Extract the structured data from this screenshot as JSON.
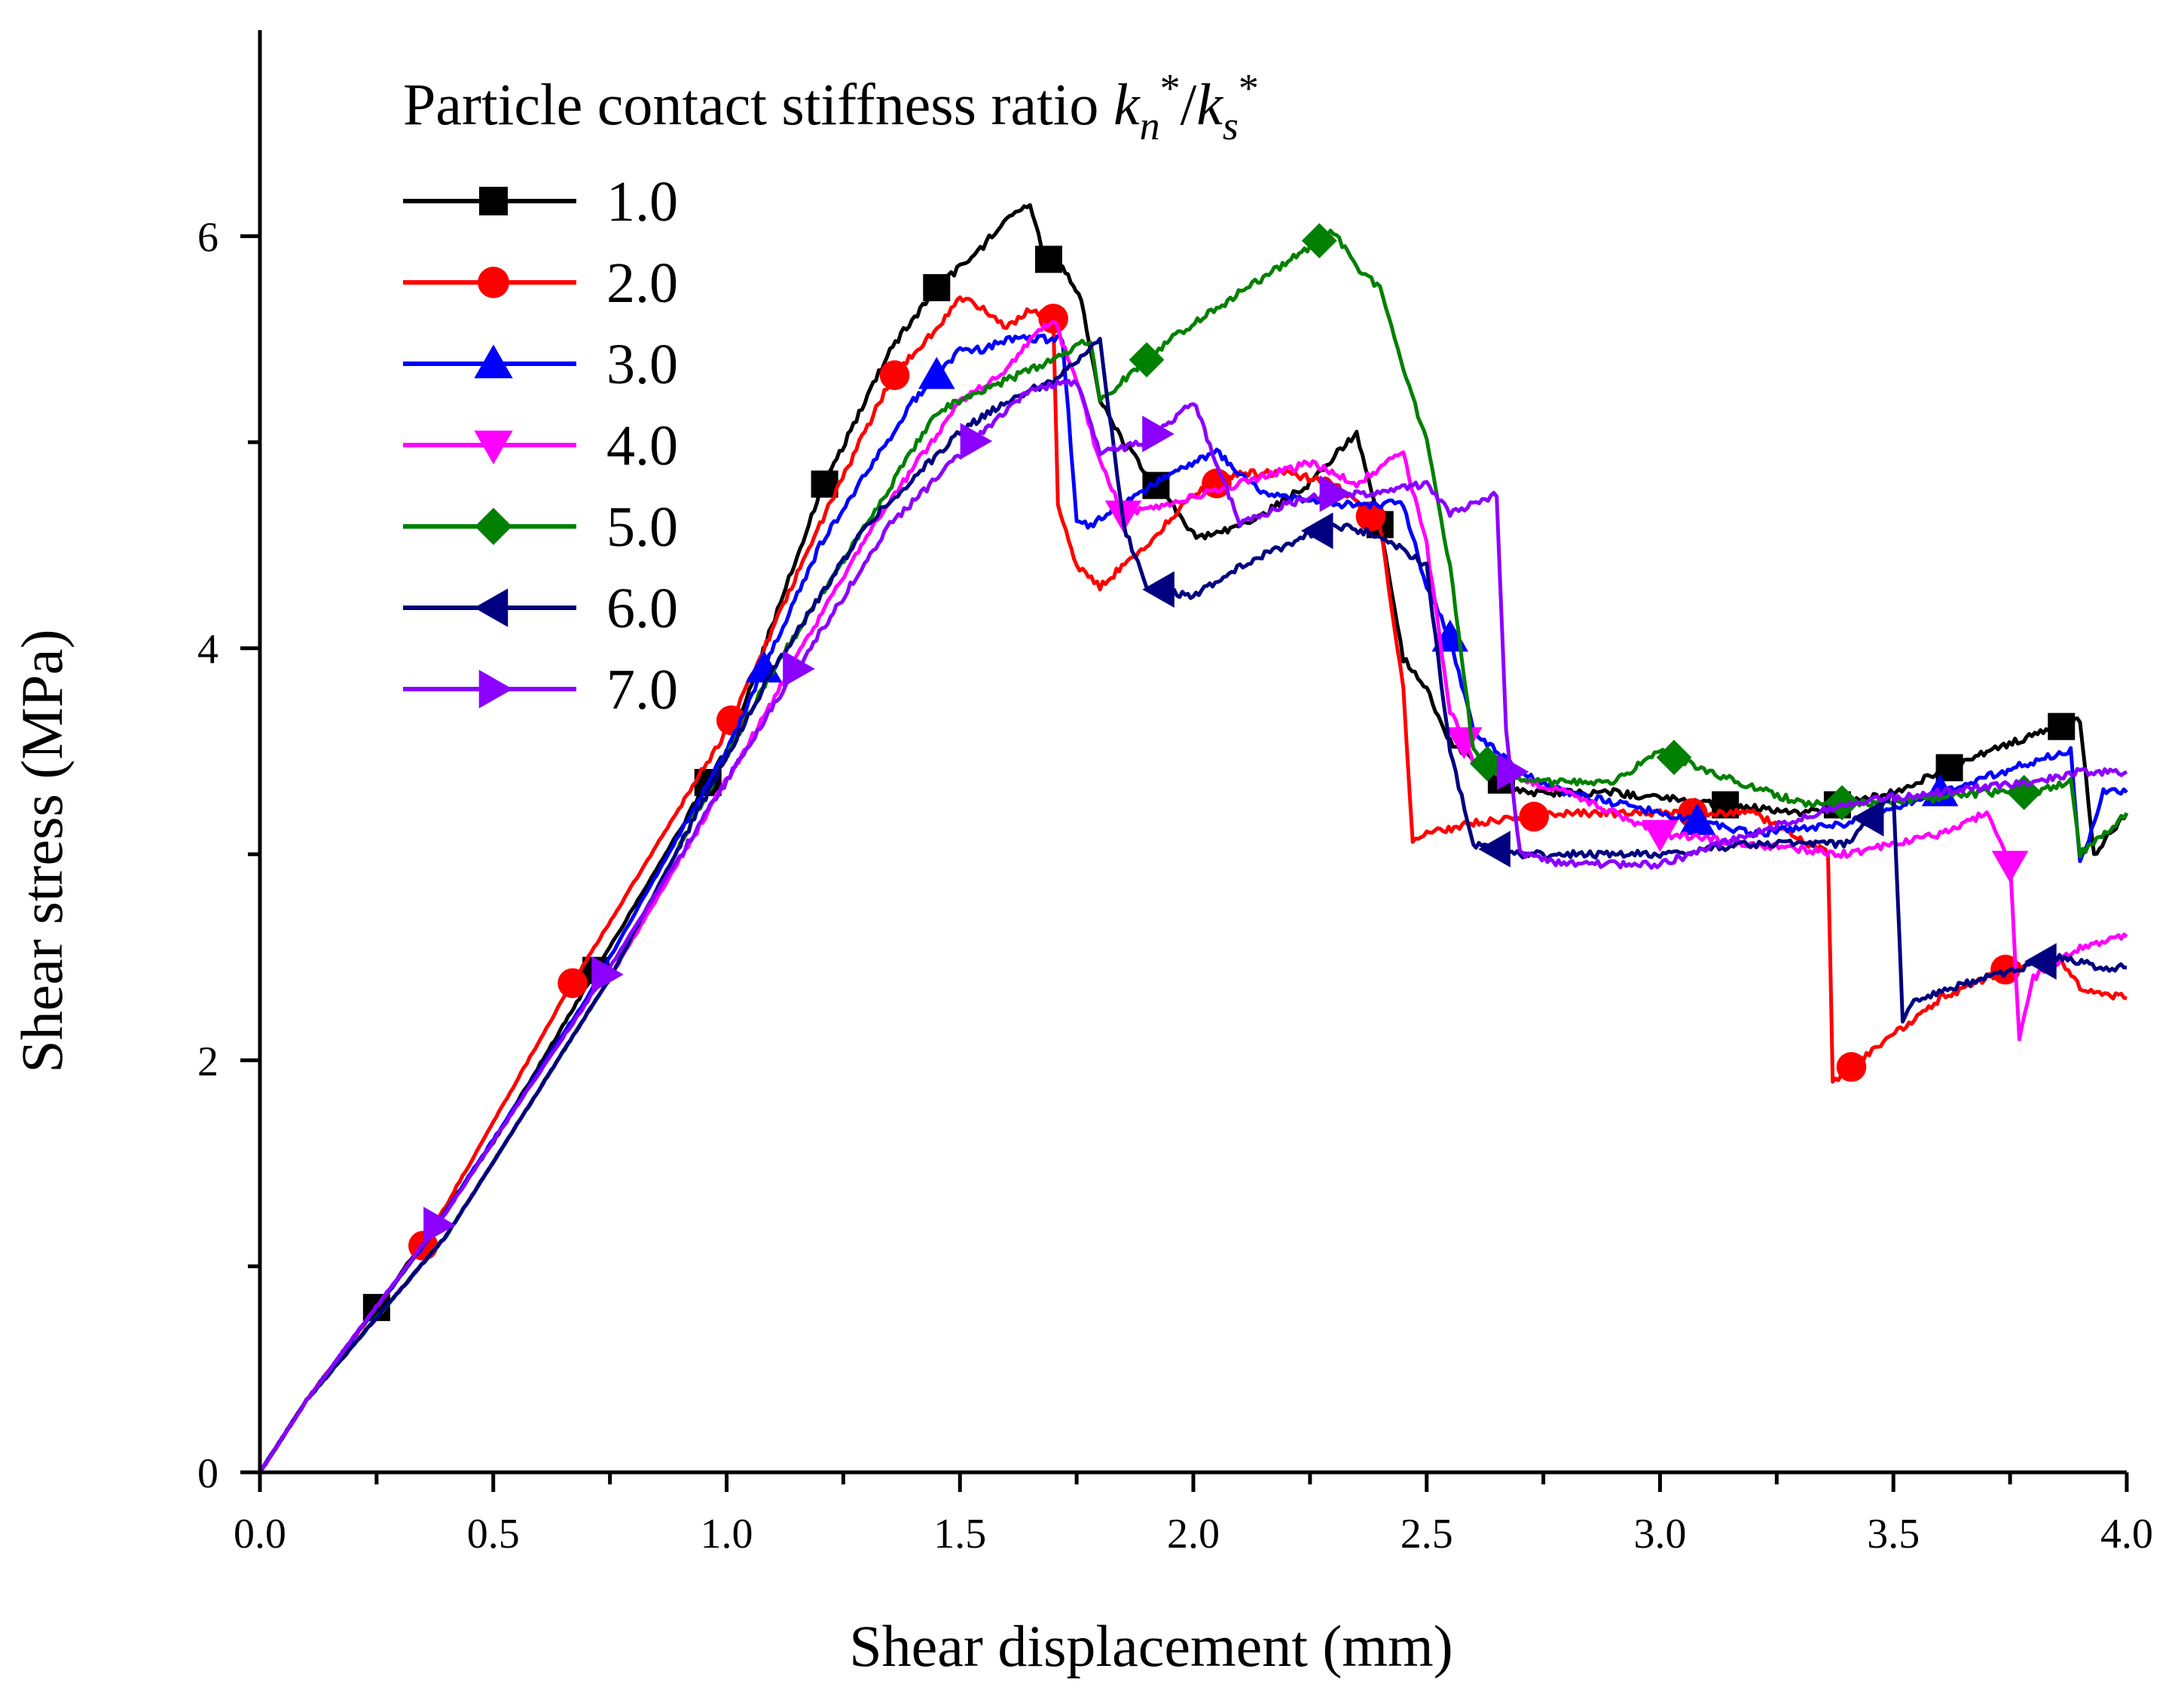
{
  "chart_data": {
    "type": "line",
    "title": "",
    "xlabel": "Shear displacement (mm)",
    "ylabel": "Shear stress (MPa)",
    "xlim": [
      0,
      4.0
    ],
    "ylim": [
      0,
      7.0
    ],
    "xticks": [
      0.0,
      0.5,
      1.0,
      1.5,
      2.0,
      2.5,
      3.0,
      3.5,
      4.0
    ],
    "xtick_labels": [
      "0.0",
      "0.5",
      "1.0",
      "1.5",
      "2.0",
      "2.5",
      "3.0",
      "3.5",
      "4.0"
    ],
    "yticks": [
      0,
      2,
      4,
      6
    ],
    "ytick_labels": [
      "0",
      "2",
      "4",
      "6"
    ],
    "grid": false,
    "legend": {
      "title_prefix": "Particle contact stiffness ratio ",
      "title_k": "k",
      "title_sub_n": "n",
      "title_sub_s": "s",
      "title_sup": "*",
      "title_slash": "/",
      "placement": "top-left"
    },
    "series": [
      {
        "name": "1.0",
        "color": "#000000",
        "marker": "square",
        "x": [
          0,
          0.1,
          0.25,
          0.5,
          0.75,
          1.0,
          1.2,
          1.35,
          1.45,
          1.5,
          1.55,
          1.6,
          1.65,
          1.68,
          1.72,
          1.76,
          1.8,
          1.85,
          1.9,
          2.0,
          2.05,
          2.15,
          2.25,
          2.35,
          2.4,
          2.45,
          2.5,
          2.55,
          2.6,
          2.7,
          2.9,
          3.1,
          3.3,
          3.5,
          3.7,
          3.9,
          3.93,
          4.0
        ],
        "y": [
          0,
          0.35,
          0.8,
          1.6,
          2.55,
          3.5,
          4.75,
          5.45,
          5.75,
          5.85,
          5.95,
          6.1,
          6.15,
          5.9,
          5.85,
          5.7,
          5.2,
          5.0,
          4.85,
          4.55,
          4.55,
          4.65,
          4.8,
          5.05,
          4.6,
          3.95,
          3.8,
          3.55,
          3.45,
          3.3,
          3.3,
          3.25,
          3.2,
          3.3,
          3.5,
          3.65,
          3.0,
          3.2
        ],
        "marker_x": [
          0.25,
          0.72,
          0.96,
          1.21,
          1.45,
          1.69,
          1.92,
          2.4,
          2.66,
          3.14,
          3.38,
          3.62,
          3.86
        ]
      },
      {
        "name": "2.0",
        "color": "#ff0000",
        "marker": "circle",
        "x": [
          0,
          0.1,
          0.35,
          0.65,
          1.0,
          1.2,
          1.35,
          1.45,
          1.5,
          1.55,
          1.6,
          1.65,
          1.7,
          1.71,
          1.75,
          1.8,
          1.9,
          2.0,
          2.1,
          2.2,
          2.3,
          2.4,
          2.45,
          2.47,
          2.5,
          2.6,
          2.8,
          3.0,
          3.2,
          3.36,
          3.37,
          3.4,
          3.6,
          3.75,
          3.85,
          3.9,
          4.0
        ],
        "y": [
          0,
          0.35,
          1.1,
          2.3,
          3.6,
          4.6,
          5.3,
          5.55,
          5.7,
          5.65,
          5.55,
          5.65,
          5.6,
          4.7,
          4.4,
          4.3,
          4.5,
          4.75,
          4.85,
          4.85,
          4.8,
          4.6,
          3.8,
          3.05,
          3.1,
          3.15,
          3.2,
          3.2,
          3.2,
          3.0,
          1.9,
          1.95,
          2.3,
          2.45,
          2.5,
          2.35,
          2.3
        ],
        "marker_x": [
          0.35,
          0.67,
          1.01,
          1.36,
          1.7,
          2.05,
          2.38,
          2.73,
          3.07,
          3.41,
          3.74
        ]
      },
      {
        "name": "3.0",
        "color": "#0000ff",
        "marker": "triangle-up",
        "x": [
          0,
          0.1,
          0.35,
          0.7,
          1.0,
          1.2,
          1.4,
          1.5,
          1.55,
          1.6,
          1.68,
          1.72,
          1.75,
          1.78,
          1.85,
          1.95,
          2.05,
          2.15,
          2.3,
          2.45,
          2.5,
          2.55,
          2.6,
          2.7,
          2.8,
          3.0,
          3.2,
          3.4,
          3.6,
          3.8,
          3.88,
          3.9,
          3.95,
          4.0
        ],
        "y": [
          0,
          0.35,
          1.1,
          2.3,
          3.5,
          4.5,
          5.2,
          5.45,
          5.45,
          5.5,
          5.5,
          5.5,
          4.6,
          4.6,
          4.7,
          4.85,
          4.95,
          4.75,
          4.7,
          4.7,
          4.3,
          4.05,
          3.6,
          3.4,
          3.3,
          3.2,
          3.1,
          3.15,
          3.3,
          3.45,
          3.5,
          2.95,
          3.3,
          3.3
        ],
        "marker_x": [
          1.08,
          1.45,
          2.55,
          3.08,
          3.6
        ]
      },
      {
        "name": "4.0",
        "color": "#ff00ff",
        "marker": "triangle-down",
        "x": [
          0,
          0.1,
          0.4,
          0.75,
          1.05,
          1.3,
          1.5,
          1.6,
          1.65,
          1.7,
          1.75,
          1.8,
          1.85,
          1.95,
          2.1,
          2.25,
          2.35,
          2.45,
          2.5,
          2.55,
          2.6,
          2.65,
          2.8,
          3.0,
          3.2,
          3.4,
          3.6,
          3.7,
          3.75,
          3.77,
          3.8,
          3.9,
          4.0
        ],
        "y": [
          0,
          0.35,
          1.15,
          2.4,
          3.55,
          4.55,
          5.2,
          5.35,
          5.5,
          5.6,
          5.3,
          4.9,
          4.65,
          4.7,
          4.8,
          4.9,
          4.8,
          4.95,
          4.5,
          3.7,
          3.45,
          3.4,
          3.3,
          3.1,
          3.05,
          3.0,
          3.1,
          3.2,
          2.95,
          2.1,
          2.4,
          2.55,
          2.6
        ],
        "marker_x": [
          1.85,
          2.58,
          3.0,
          3.75
        ]
      },
      {
        "name": "5.0",
        "color": "#008000",
        "marker": "diamond",
        "x": [
          0,
          0.1,
          0.4,
          0.75,
          1.1,
          1.3,
          1.45,
          1.6,
          1.7,
          1.78,
          1.8,
          1.85,
          1.95,
          2.05,
          2.15,
          2.25,
          2.3,
          2.35,
          2.4,
          2.45,
          2.5,
          2.55,
          2.6,
          2.65,
          2.75,
          2.9,
          3.0,
          3.1,
          3.3,
          3.5,
          3.7,
          3.8,
          3.88,
          3.9,
          4.0
        ],
        "y": [
          0,
          0.35,
          1.15,
          2.4,
          3.9,
          4.6,
          5.15,
          5.3,
          5.4,
          5.5,
          5.2,
          5.3,
          5.5,
          5.65,
          5.8,
          5.95,
          6.02,
          5.85,
          5.75,
          5.35,
          5.0,
          4.4,
          3.5,
          3.4,
          3.35,
          3.35,
          3.5,
          3.4,
          3.25,
          3.25,
          3.3,
          3.3,
          3.35,
          3.0,
          3.2
        ],
        "marker_x": [
          1.9,
          2.27,
          2.63,
          3.03,
          3.39,
          3.78
        ]
      },
      {
        "name": "6.0",
        "color": "#000080",
        "marker": "triangle-left",
        "x": [
          0,
          0.1,
          0.4,
          0.75,
          1.1,
          1.3,
          1.5,
          1.6,
          1.7,
          1.8,
          1.85,
          1.9,
          2.0,
          2.1,
          2.2,
          2.3,
          2.4,
          2.5,
          2.55,
          2.6,
          2.7,
          3.0,
          3.2,
          3.4,
          3.5,
          3.52,
          3.55,
          3.7,
          3.85,
          3.95,
          4.0
        ],
        "y": [
          0,
          0.35,
          1.15,
          2.4,
          3.9,
          4.6,
          5.05,
          5.2,
          5.3,
          5.5,
          4.6,
          4.3,
          4.25,
          4.4,
          4.5,
          4.6,
          4.55,
          4.4,
          3.5,
          3.05,
          3.0,
          3.0,
          3.05,
          3.05,
          3.3,
          2.2,
          2.3,
          2.4,
          2.5,
          2.45,
          2.45
        ],
        "marker_x": [
          1.93,
          2.27,
          2.65,
          3.45,
          3.82
        ]
      },
      {
        "name": "7.0",
        "color": "#8b00ff",
        "marker": "triangle-right",
        "x": [
          0,
          0.1,
          0.38,
          0.75,
          1.15,
          1.35,
          1.55,
          1.65,
          1.75,
          1.8,
          1.9,
          2.0,
          2.1,
          2.2,
          2.3,
          2.4,
          2.5,
          2.55,
          2.6,
          2.65,
          2.67,
          2.7,
          2.8,
          3.0,
          3.2,
          3.4,
          3.6,
          3.8,
          3.9,
          4.0
        ],
        "y": [
          0,
          0.35,
          1.2,
          2.45,
          3.9,
          4.6,
          5.05,
          5.25,
          5.3,
          4.95,
          5.0,
          5.2,
          4.6,
          4.7,
          4.75,
          4.75,
          4.8,
          4.65,
          4.7,
          4.75,
          3.6,
          3.0,
          2.95,
          2.95,
          3.1,
          3.25,
          3.3,
          3.35,
          3.4,
          3.4
        ],
        "marker_x": [
          0.38,
          0.74,
          1.15,
          1.53,
          1.92,
          2.3,
          2.68
        ]
      }
    ]
  }
}
